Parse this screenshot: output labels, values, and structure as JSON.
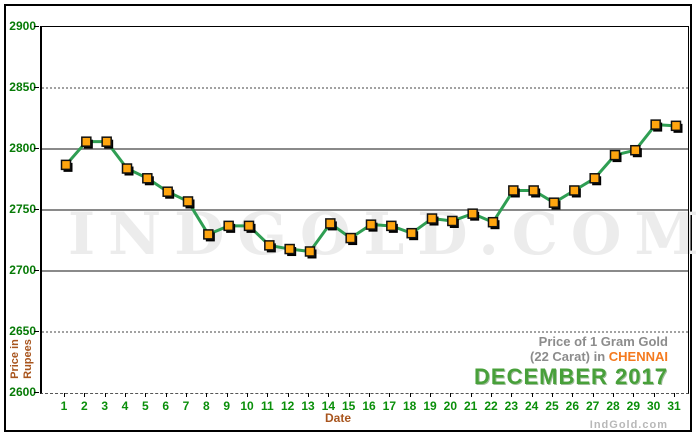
{
  "chart_data": {
    "type": "line",
    "title": "Price of 1 Gram Gold (22 Carat) in CHENNAI - DECEMBER 2017",
    "xlabel": "Date",
    "ylabel": "Price in Rupees",
    "x": [
      1,
      2,
      3,
      4,
      5,
      6,
      7,
      8,
      9,
      10,
      11,
      12,
      13,
      14,
      15,
      16,
      17,
      18,
      19,
      20,
      21,
      22,
      23,
      24,
      25,
      26,
      27,
      28,
      29,
      30,
      31
    ],
    "values": [
      2787,
      2806,
      2806,
      2784,
      2776,
      2765,
      2757,
      2730,
      2737,
      2737,
      2721,
      2718,
      2716,
      2739,
      2727,
      2738,
      2737,
      2731,
      2743,
      2741,
      2747,
      2740,
      2766,
      2766,
      2756,
      2766,
      2776,
      2795,
      2799,
      2820,
      2819
    ],
    "ylim": [
      2600,
      2900
    ],
    "y_ticks": [
      2900,
      2850,
      2800,
      2750,
      2700,
      2650,
      2600
    ],
    "solid_gridlines": [
      2800,
      2750,
      2700
    ],
    "dotted_gridlines": [
      2850,
      2650
    ],
    "grid": true,
    "legend": "none",
    "line_color": "#2f9e53",
    "marker_color": "#ffa50f",
    "marker_border_color": "#111111",
    "marker_shadow_color": "#000000",
    "gridline_solid_color": "#8a8a8a",
    "gridline_dotted_color": "#444444"
  },
  "axis": {
    "xlabel": "Date",
    "ylabel_line1": "Price in",
    "ylabel_line2": "Rupees",
    "y_label_color": "#067a06",
    "x_label_color": "#0a8f0a",
    "axis_title_color": "#a8551e"
  },
  "titles": {
    "line1": "Price of 1 Gram Gold",
    "line2_prefix": "(22 Carat) in ",
    "city": "CHENNAI",
    "period": "DECEMBER 2017",
    "city_color": "#f47a1f",
    "period_color": "#48a03a",
    "gray_color": "#8c8c8c"
  },
  "watermark": {
    "text": "INDGOLD.COM"
  },
  "footer": {
    "brand": "IndGold.com"
  }
}
